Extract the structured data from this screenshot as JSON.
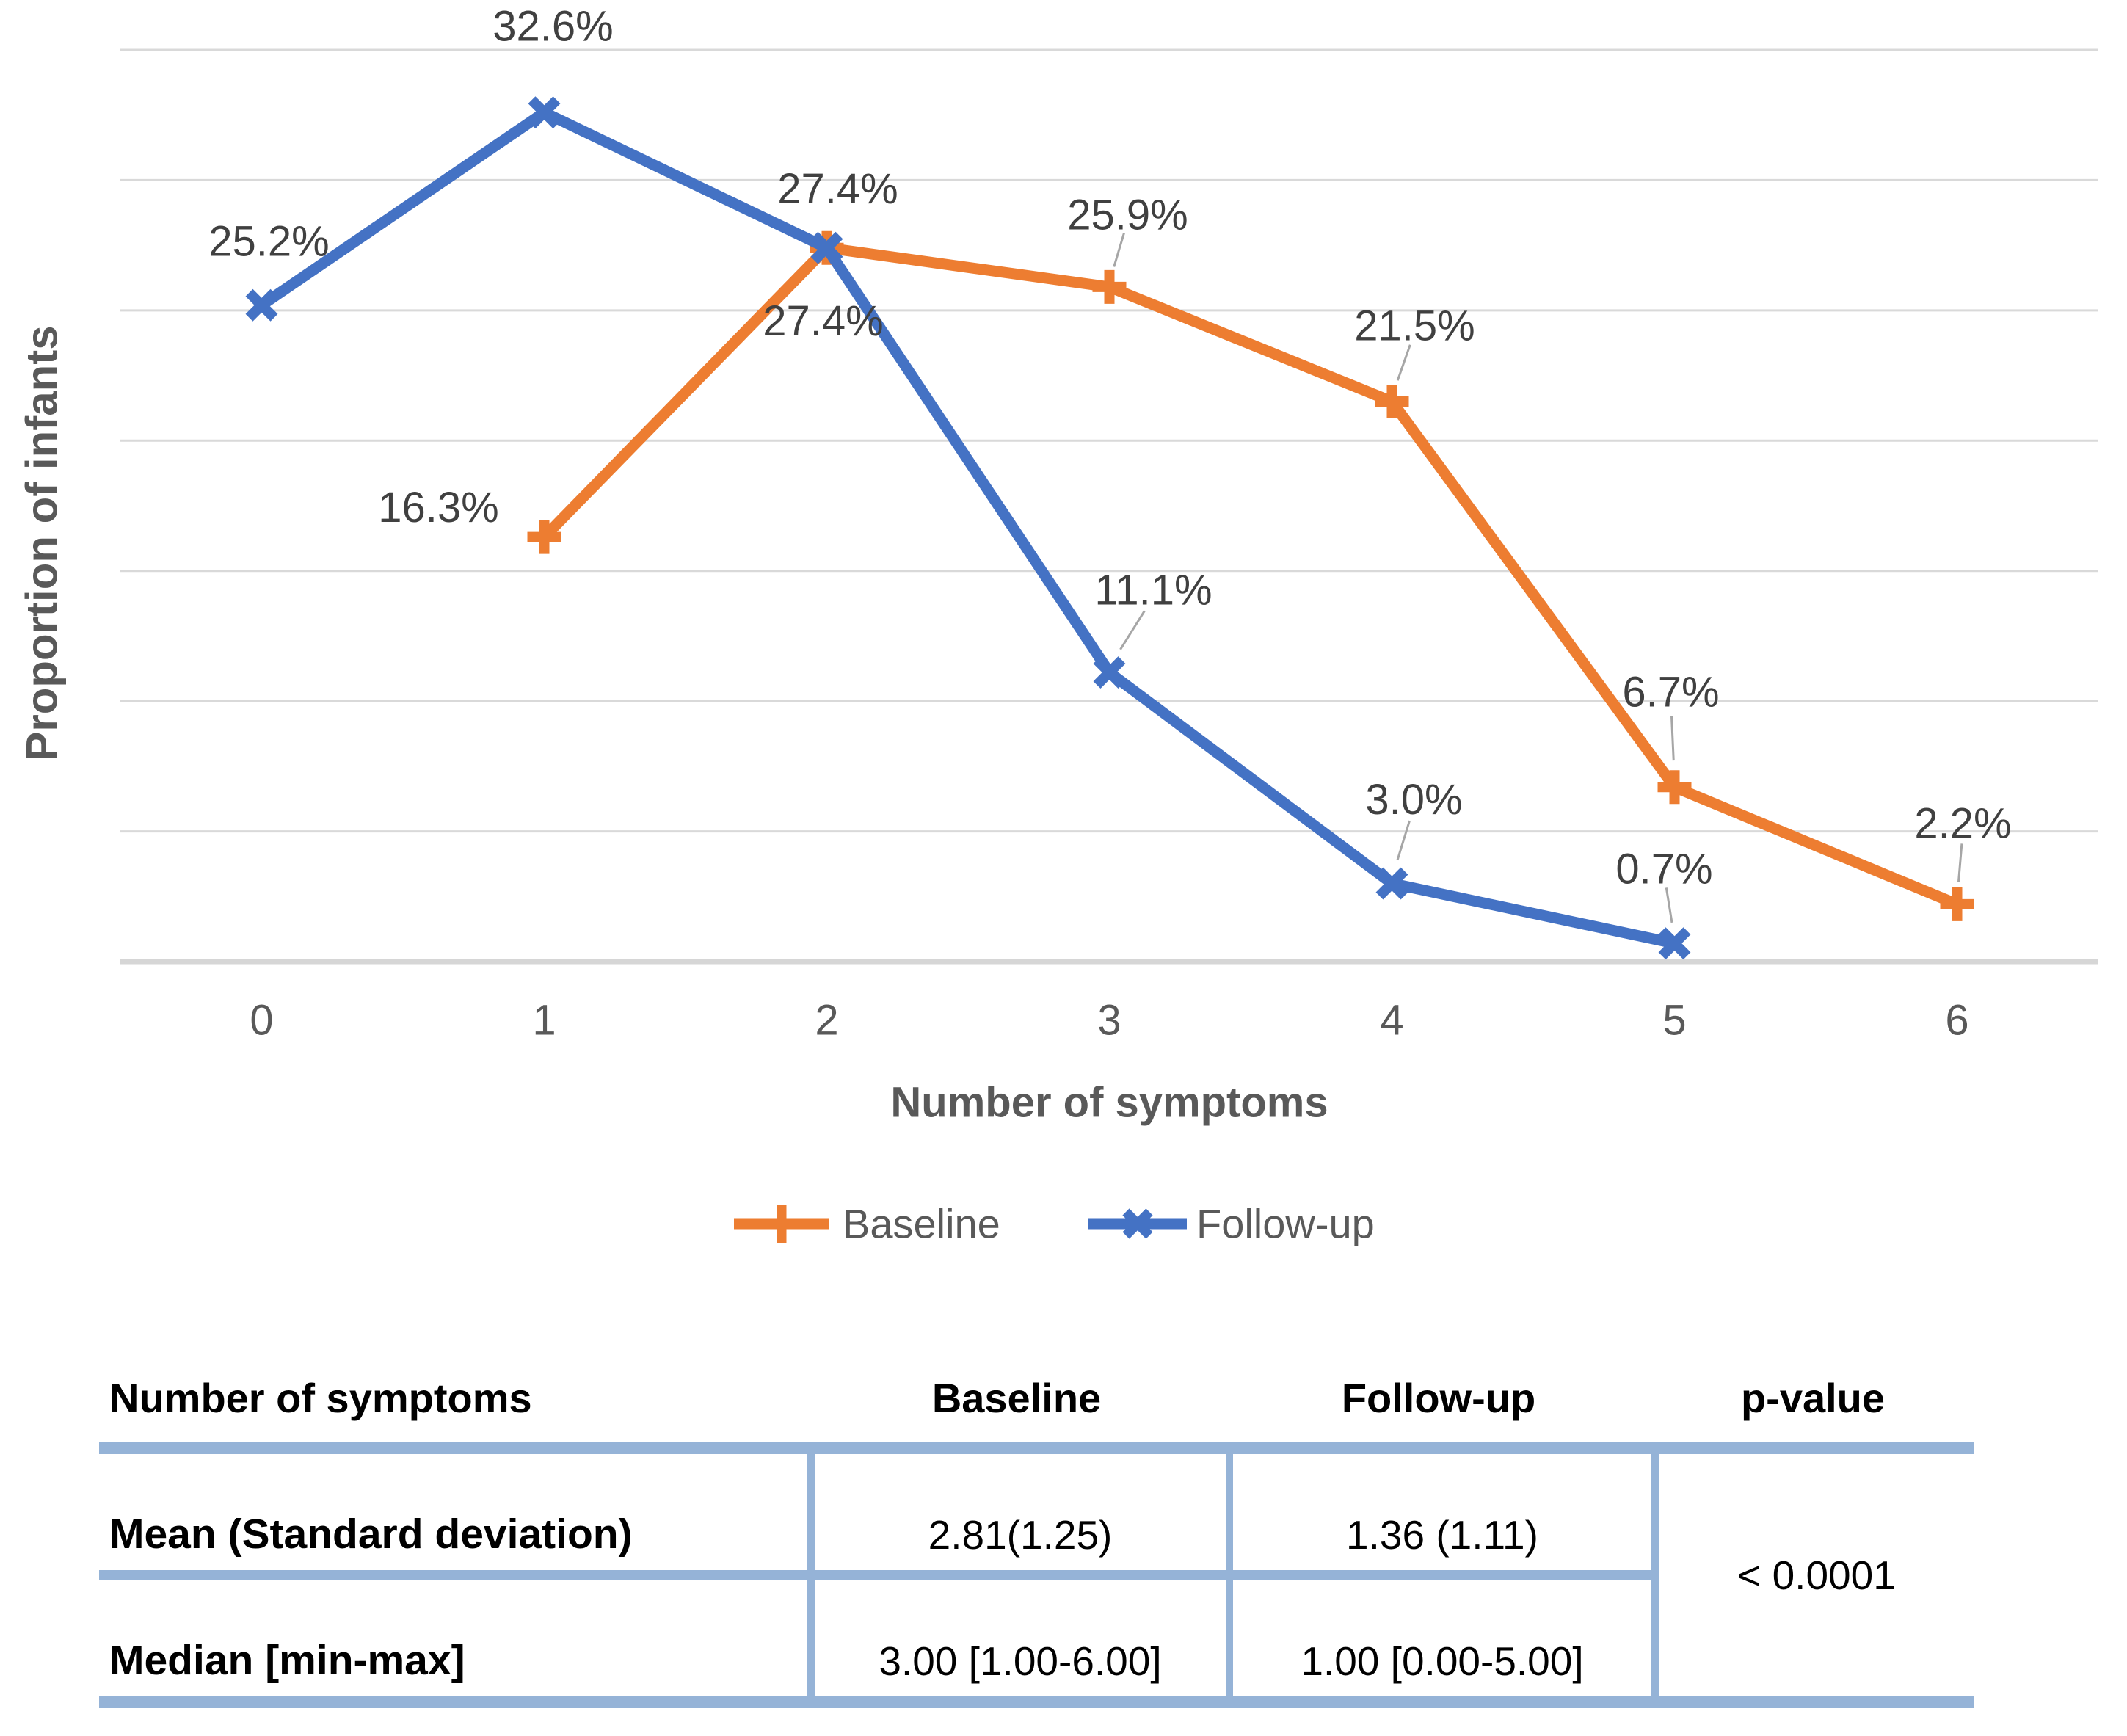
{
  "chart_data": {
    "type": "line",
    "title": "",
    "xlabel": "Number of symptoms",
    "ylabel": "Proportion of infants",
    "categories": [
      "0",
      "1",
      "2",
      "3",
      "4",
      "5",
      "6"
    ],
    "ylim": [
      0,
      35
    ],
    "gridline_step_pct": 5,
    "grid": true,
    "y_tick_labels_shown": false,
    "legend_position": "bottom",
    "colors": {
      "baseline": "#ED7D31",
      "followup": "#4472C4",
      "gridline": "#D9D9D9",
      "axis_line": "#D6D6D6",
      "data_label_text": "#404040",
      "axis_text": "#595959",
      "leader_line": "#A6A6A6"
    },
    "series": [
      {
        "name": "Baseline",
        "marker": "plus",
        "color": "#ED7D31",
        "x": [
          1,
          2,
          3,
          4,
          5,
          6
        ],
        "values": [
          16.3,
          27.4,
          25.9,
          21.5,
          6.7,
          2.2
        ],
        "labels": [
          "16.3%",
          "27.4%",
          "25.9%",
          "21.5%",
          "6.7%",
          "2.2%"
        ]
      },
      {
        "name": "Follow-up",
        "marker": "x",
        "color": "#4472C4",
        "x": [
          0,
          1,
          2,
          3,
          4,
          5
        ],
        "values": [
          25.2,
          32.6,
          27.4,
          11.1,
          3.0,
          0.7
        ],
        "labels": [
          "25.2%",
          "32.6%",
          "27.4%",
          "11.1%",
          "3.0%",
          "0.7%"
        ]
      }
    ]
  },
  "table": {
    "accent_color": "#95B3D7",
    "headers": [
      "Number of symptoms",
      "Baseline",
      "Follow-up",
      "p-value"
    ],
    "rows": [
      {
        "label": "Mean (Standard deviation)",
        "baseline": "2.81(1.25)",
        "followup": "1.36 (1.11)"
      },
      {
        "label": "Median [min-max]",
        "baseline": "3.00 [1.00-6.00]",
        "followup": "1.00 [0.00-5.00]"
      }
    ],
    "p_value": "< 0.0001"
  }
}
